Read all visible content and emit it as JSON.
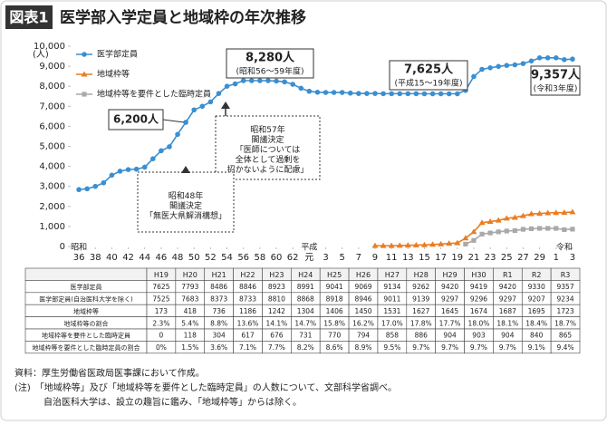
{
  "header": {
    "badge": "図表1",
    "title": "医学部入学定員と地域枠の年次推移"
  },
  "chart_data": {
    "type": "line",
    "y_unit": "(人)",
    "series": [
      {
        "name": "医学部定員",
        "color": "#3a8fd1",
        "marker": "circle",
        "x": [
          1961,
          1962,
          1963,
          1964,
          1965,
          1966,
          1967,
          1968,
          1969,
          1970,
          1971,
          1972,
          1973,
          1974,
          1975,
          1976,
          1977,
          1978,
          1979,
          1980,
          1981,
          1982,
          1983,
          1984,
          1985,
          1986,
          1987,
          1988,
          1989,
          1990,
          1991,
          1992,
          1993,
          1994,
          1995,
          1996,
          1997,
          1998,
          1999,
          2000,
          2001,
          2002,
          2003,
          2004,
          2005,
          2006,
          2007,
          2008,
          2009,
          2010,
          2011,
          2012,
          2013,
          2014,
          2015,
          2016,
          2017,
          2018,
          2019,
          2020,
          2021
        ],
        "values": [
          2840,
          2880,
          3000,
          3180,
          3560,
          3760,
          3840,
          3860,
          3960,
          4380,
          4780,
          4980,
          5600,
          6200,
          6820,
          7000,
          7220,
          7640,
          8000,
          8120,
          8280,
          8280,
          8280,
          8280,
          8260,
          8220,
          8100,
          7900,
          7750,
          7700,
          7690,
          7690,
          7690,
          7660,
          7640,
          7640,
          7640,
          7630,
          7630,
          7630,
          7630,
          7630,
          7625,
          7625,
          7625,
          7625,
          7625,
          7793,
          8486,
          8846,
          8923,
          8991,
          9041,
          9069,
          9134,
          9262,
          9420,
          9419,
          9420,
          9330,
          9357
        ]
      },
      {
        "name": "地域枠等",
        "color": "#ea7d22",
        "marker": "triangle",
        "x": [
          1997,
          1998,
          1999,
          2000,
          2001,
          2002,
          2003,
          2004,
          2005,
          2006,
          2007,
          2008,
          2009,
          2010,
          2011,
          2012,
          2013,
          2014,
          2015,
          2016,
          2017,
          2018,
          2019,
          2020,
          2021
        ],
        "values": [
          40,
          40,
          40,
          50,
          60,
          70,
          80,
          100,
          120,
          150,
          173,
          418,
          736,
          1186,
          1242,
          1304,
          1406,
          1450,
          1531,
          1627,
          1645,
          1674,
          1687,
          1695,
          1723
        ]
      },
      {
        "name": "地域枠等を要件とした臨時定員",
        "color": "#a9a9a9",
        "marker": "square",
        "x": [
          2008,
          2009,
          2010,
          2011,
          2012,
          2013,
          2014,
          2015,
          2016,
          2017,
          2018,
          2019,
          2020,
          2021
        ],
        "values": [
          118,
          304,
          617,
          676,
          731,
          770,
          794,
          858,
          886,
          904,
          903,
          904,
          840,
          865
        ]
      }
    ],
    "xlim": [
      1960,
      2022
    ],
    "xticks": [
      {
        "value": 1961,
        "label": "36"
      },
      {
        "value": 1963,
        "label": "38"
      },
      {
        "value": 1965,
        "label": "40"
      },
      {
        "value": 1967,
        "label": "42"
      },
      {
        "value": 1969,
        "label": "44"
      },
      {
        "value": 1971,
        "label": "46"
      },
      {
        "value": 1973,
        "label": "48"
      },
      {
        "value": 1975,
        "label": "50"
      },
      {
        "value": 1977,
        "label": "52"
      },
      {
        "value": 1979,
        "label": "54"
      },
      {
        "value": 1981,
        "label": "56"
      },
      {
        "value": 1983,
        "label": "58"
      },
      {
        "value": 1985,
        "label": "60"
      },
      {
        "value": 1987,
        "label": "62"
      },
      {
        "value": 1989,
        "label": "元"
      },
      {
        "value": 1991,
        "label": "3"
      },
      {
        "value": 1993,
        "label": "5"
      },
      {
        "value": 1995,
        "label": "7"
      },
      {
        "value": 1997,
        "label": "9"
      },
      {
        "value": 1999,
        "label": "11"
      },
      {
        "value": 2001,
        "label": "13"
      },
      {
        "value": 2003,
        "label": "15"
      },
      {
        "value": 2005,
        "label": "17"
      },
      {
        "value": 2007,
        "label": "19"
      },
      {
        "value": 2009,
        "label": "21"
      },
      {
        "value": 2011,
        "label": "23"
      },
      {
        "value": 2013,
        "label": "25"
      },
      {
        "value": 2015,
        "label": "27"
      },
      {
        "value": 2017,
        "label": "29"
      },
      {
        "value": 2019,
        "label": "1"
      },
      {
        "value": 2021,
        "label": "3"
      }
    ],
    "x_era_labels": [
      {
        "value": 1961,
        "label": "昭和"
      },
      {
        "value": 1989,
        "label": "平成"
      },
      {
        "value": 2020,
        "label": "令和"
      }
    ],
    "ylim": [
      0,
      10000
    ],
    "yticks": [
      0,
      {
        "value": 1000,
        "label": "1,000"
      },
      {
        "value": 2000,
        "label": "2,000"
      },
      {
        "value": 3000,
        "label": "3,000"
      },
      {
        "value": 4000,
        "label": "4,000"
      },
      {
        "value": 5000,
        "label": "5,000"
      },
      {
        "value": 6000,
        "label": "6,000"
      },
      {
        "value": 7000,
        "label": "7,000"
      },
      {
        "value": 8000,
        "label": "8,000"
      },
      {
        "value": 9000,
        "label": "9,000"
      },
      {
        "value": 10000,
        "label": "10,000"
      }
    ],
    "legend": "upper left",
    "annotations": [
      {
        "lines": [
          "6,200人"
        ]
      },
      {
        "lines": [
          "8,280人",
          "(昭和56～59年度)"
        ]
      },
      {
        "lines": [
          "7,625人",
          "(平成15～19年度)"
        ]
      },
      {
        "lines": [
          "9,357人",
          "(令和3年度)"
        ]
      },
      {
        "lines": [
          "昭和57年",
          "閣議決定",
          "「医師については",
          "全体として過剰を",
          "招かないように配慮」"
        ]
      },
      {
        "lines": [
          "昭和48年",
          "閣議決定",
          "「無医大県解消構想」"
        ]
      }
    ]
  },
  "table": {
    "columns": [
      "H19",
      "H20",
      "H21",
      "H22",
      "H23",
      "H24",
      "H25",
      "H26",
      "H27",
      "H28",
      "H29",
      "H30",
      "R1",
      "R2",
      "R3"
    ],
    "rows": [
      {
        "label": "医学部定員",
        "cells": [
          "7625",
          "7793",
          "8486",
          "8846",
          "8923",
          "8991",
          "9041",
          "9069",
          "9134",
          "9262",
          "9420",
          "9419",
          "9420",
          "9330",
          "9357"
        ]
      },
      {
        "label": "医学部定員(自治医科大学を除く)",
        "cells": [
          "7525",
          "7683",
          "8373",
          "8733",
          "8810",
          "8868",
          "8918",
          "8946",
          "9011",
          "9139",
          "9297",
          "9296",
          "9297",
          "9207",
          "9234"
        ]
      },
      {
        "label": "地域枠等",
        "cells": [
          "173",
          "418",
          "736",
          "1186",
          "1242",
          "1304",
          "1406",
          "1450",
          "1531",
          "1627",
          "1645",
          "1674",
          "1687",
          "1695",
          "1723"
        ]
      },
      {
        "label": "地域枠等の割合",
        "cells": [
          "2.3%",
          "5.4%",
          "8.8%",
          "13.6%",
          "14.1%",
          "14.7%",
          "15.8%",
          "16.2%",
          "17.0%",
          "17.8%",
          "17.7%",
          "18.0%",
          "18.1%",
          "18.4%",
          "18.7%"
        ]
      },
      {
        "label": "地域枠等を要件とした臨時定員",
        "cells": [
          "0",
          "118",
          "304",
          "617",
          "676",
          "731",
          "770",
          "794",
          "858",
          "886",
          "904",
          "903",
          "904",
          "840",
          "865"
        ]
      },
      {
        "label": "地域枠等を要件とした臨時定員の割合",
        "cells": [
          "0%",
          "1.5%",
          "3.6%",
          "7.1%",
          "7.7%",
          "8.2%",
          "8.6%",
          "8.9%",
          "9.5%",
          "9.7%",
          "9.7%",
          "9.7%",
          "9.7%",
          "9.1%",
          "9.4%"
        ]
      }
    ]
  },
  "notes": [
    "資料：厚生労働省医政局医事課において作成。",
    "(注)　「地域枠等」及び「地域枠等を要件とした臨時定員」の人数について、文部科学省調べ。",
    "自治医科大学は、設立の趣旨に鑑み、「地域枠等」からは除く。"
  ]
}
